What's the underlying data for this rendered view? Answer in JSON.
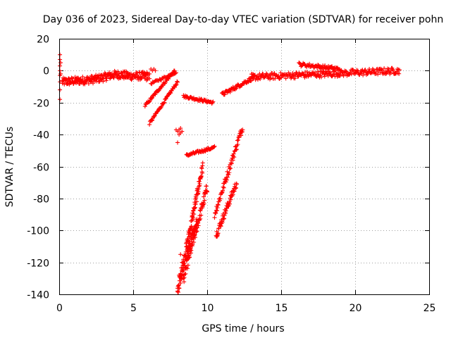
{
  "chart_data": {
    "type": "scatter",
    "title": "Day 036 of 2023, Sidereal Day-to-day VTEC variation (SDTVAR) for receiver pohn",
    "xlabel": "GPS time / hours",
    "ylabel": "SDTVAR / TECUs",
    "xlim": [
      0,
      25
    ],
    "ylim": [
      -140,
      20
    ],
    "xticks": [
      0,
      5,
      10,
      15,
      20,
      25
    ],
    "yticks": [
      -140,
      -120,
      -100,
      -80,
      -60,
      -40,
      -20,
      0,
      20
    ],
    "grid": true,
    "marker": "+",
    "color": "#ff0000",
    "series": [
      {
        "name": "start-spike",
        "points": [
          [
            0.05,
            10
          ],
          [
            0.05,
            7
          ],
          [
            0.05,
            3
          ],
          [
            0.05,
            0
          ],
          [
            0.05,
            -3
          ],
          [
            0.05,
            -7
          ],
          [
            0.05,
            -12
          ],
          [
            0.05,
            -18
          ],
          [
            0.1,
            5
          ],
          [
            0.1,
            -2
          ]
        ]
      },
      {
        "name": "main-band-1",
        "x_range": [
          0.2,
          6.0
        ],
        "y_start": -7,
        "y_end": -3,
        "y_jitter": 2.5,
        "n": 240,
        "hump": [
          [
            3.5,
            4
          ],
          [
            -1,
            1
          ]
        ]
      },
      {
        "name": "arc-a",
        "x_range": [
          5.8,
          7.8
        ],
        "y_start": -22,
        "y_end": 0,
        "y_jitter": 0.8,
        "n": 50
      },
      {
        "name": "arc-b",
        "x_range": [
          6.1,
          8.0
        ],
        "y_start": -33,
        "y_end": -7,
        "y_jitter": 0.8,
        "n": 50
      },
      {
        "name": "arc-c",
        "x_range": [
          6.2,
          7.9
        ],
        "y_start": -8,
        "y_end": -1,
        "y_jitter": 0.6,
        "n": 30
      },
      {
        "name": "step-cluster",
        "points": [
          [
            5.8,
            -5
          ],
          [
            5.9,
            -6
          ],
          [
            6.0,
            -4
          ],
          [
            6.1,
            -5
          ],
          [
            6.0,
            -3
          ],
          [
            6.1,
            -2
          ],
          [
            6.2,
            1
          ],
          [
            6.3,
            0
          ],
          [
            6.4,
            1
          ],
          [
            6.5,
            0
          ]
        ]
      },
      {
        "name": "cluster-38",
        "points": [
          [
            7.9,
            -37
          ],
          [
            8.0,
            -38
          ],
          [
            8.1,
            -37
          ],
          [
            8.2,
            -39
          ],
          [
            8.1,
            -40
          ],
          [
            8.3,
            -38
          ],
          [
            8.2,
            -36
          ],
          [
            8.0,
            -45
          ]
        ]
      },
      {
        "name": "arc-16-20",
        "x_range": [
          8.4,
          10.4
        ],
        "y_start": -16,
        "y_end": -20,
        "y_jitter": 0.8,
        "n": 50
      },
      {
        "name": "arc-53-48",
        "x_range": [
          8.6,
          10.5
        ],
        "y_start": -53,
        "y_end": -48,
        "y_jitter": 0.8,
        "n": 50
      },
      {
        "name": "deep-drop-1",
        "x_range": [
          8.0,
          9.7
        ],
        "y_start": -138,
        "y_end": -60,
        "y_jitter": 3.5,
        "n": 110
      },
      {
        "name": "deep-drop-2",
        "x_range": [
          8.4,
          10.0
        ],
        "y_start": -130,
        "y_end": -73,
        "y_jitter": 3.5,
        "n": 90
      },
      {
        "name": "deep-drop-3",
        "x_range": [
          8.6,
          9.3
        ],
        "y_start": -115,
        "y_end": -95,
        "y_jitter": 3,
        "n": 40
      },
      {
        "name": "low-cluster",
        "points": [
          [
            8.0,
            -138
          ],
          [
            8.1,
            -136
          ],
          [
            8.2,
            -133
          ],
          [
            8.3,
            -130
          ],
          [
            8.1,
            -128
          ],
          [
            8.4,
            -125
          ],
          [
            8.3,
            -120
          ],
          [
            8.2,
            -115
          ],
          [
            8.5,
            -122
          ],
          [
            8.6,
            -118
          ]
        ]
      },
      {
        "name": "mid-drop-1",
        "x_range": [
          10.5,
          12.4
        ],
        "y_start": -90,
        "y_end": -35,
        "y_jitter": 2.5,
        "n": 70
      },
      {
        "name": "mid-drop-2",
        "x_range": [
          10.6,
          12.0
        ],
        "y_start": -103,
        "y_end": -70,
        "y_jitter": 2.5,
        "n": 60
      },
      {
        "name": "rise-arc",
        "x_range": [
          11.0,
          13.2
        ],
        "y_start": -15,
        "y_end": -4,
        "y_jitter": 1.2,
        "n": 60
      },
      {
        "name": "main-band-2",
        "x_range": [
          13.0,
          23.0
        ],
        "y_start": -4,
        "y_end": 0,
        "y_jitter": 2,
        "n": 260
      },
      {
        "name": "upper-arc",
        "x_range": [
          16.2,
          19.0
        ],
        "y_start": 4,
        "y_end": 1,
        "y_jitter": 1.2,
        "n": 60
      }
    ]
  }
}
